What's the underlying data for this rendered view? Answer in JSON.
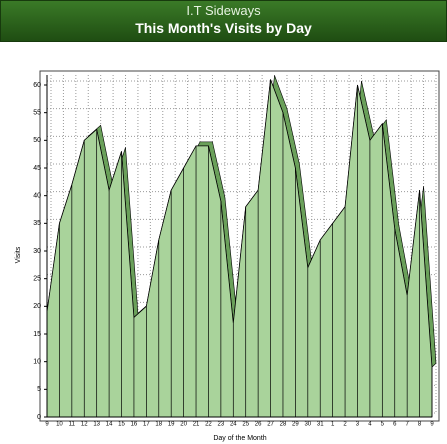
{
  "header": {
    "site": "I.T Sideways"
  },
  "chart_data": {
    "type": "area",
    "title": "This Month's Visits by Day",
    "x_label": "Day of the Month",
    "y_label": "Visits",
    "categories": [
      "9",
      "10",
      "11",
      "12",
      "13",
      "14",
      "15",
      "16",
      "17",
      "18",
      "19",
      "20",
      "21",
      "22",
      "23",
      "24",
      "25",
      "26",
      "27",
      "28",
      "29",
      "30",
      "31",
      "1",
      "2",
      "3",
      "4",
      "5",
      "6",
      "7",
      "8",
      "9"
    ],
    "values": [
      19,
      35,
      42,
      50,
      52,
      41,
      48,
      18,
      20,
      32,
      41,
      45,
      49,
      49,
      39,
      17,
      38,
      41,
      61,
      55,
      45,
      27,
      32,
      35,
      38,
      60,
      50,
      53,
      34,
      22,
      41,
      9
    ],
    "color": "#a9d39b",
    "line_color": "#000000",
    "ylim": [
      0,
      60
    ],
    "yticks": [
      0,
      5,
      10,
      15,
      20,
      25,
      30,
      35,
      40,
      45,
      50,
      55,
      60
    ],
    "grid": true
  }
}
